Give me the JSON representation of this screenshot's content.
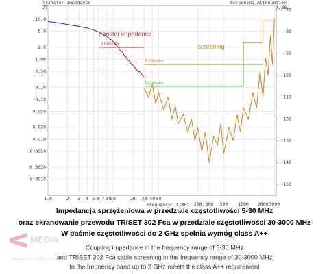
{
  "chart_data": {
    "type": "line",
    "header_left": "Transfer Impedance",
    "unit_left": "ZT/(mOhm/m)",
    "header_right": "Screening Attenuation",
    "unit_right": "as(150)/dB",
    "x_label": "Frequency: f/MHz",
    "xscale": "log",
    "yscale": "log",
    "grid": true,
    "xlim": [
      1,
      3200
    ],
    "xticks": [
      {
        "value": 1,
        "label": "1.0"
      },
      2,
      3,
      4,
      5,
      6,
      7,
      8,
      9,
      10,
      20,
      30,
      40,
      50,
      200,
      300,
      500,
      1000,
      2000,
      3000
    ],
    "ylim": [
      0.0004,
      22
    ],
    "yticks": [
      {
        "value": 10,
        "label": "10.0"
      },
      {
        "value": 5,
        "label": "5.0"
      },
      {
        "value": 2,
        "label": "2.0"
      },
      {
        "value": 1,
        "label": "1.00"
      },
      {
        "value": 0.5,
        "label": "0.50"
      },
      {
        "value": 0.2,
        "label": "0.20"
      },
      {
        "value": 0.1,
        "label": "0.10"
      },
      {
        "value": 0.05,
        "label": "0.050"
      },
      {
        "value": 0.02,
        "label": "0.020"
      },
      {
        "value": 0.01,
        "label": "0.010"
      },
      {
        "value": 0.005,
        "label": "0.0050"
      },
      {
        "value": 0.002,
        "label": "0.0020"
      },
      {
        "value": 0.001,
        "label": "0.0010"
      }
    ],
    "y2lim": [
      -155,
      -68
    ],
    "y2ticks": [
      -70,
      -80,
      -90,
      -100,
      -110,
      -120,
      -130,
      -140,
      -150
    ],
    "annotations": [
      {
        "text": "transfer impedance",
        "x": 6,
        "y": 4.2,
        "color": "#c0392b"
      },
      {
        "text": "screening",
        "x": 200,
        "y2": -87,
        "color": "#d08a30"
      },
      {
        "text": "2 Class A+",
        "x": 6.5,
        "y": 2.4,
        "color": "#c0302a"
      },
      {
        "text": "6 Class A+",
        "x": 31,
        "y2": -93.5,
        "color": "#c07a20"
      },
      {
        "text": "5 Class A+",
        "x": 31,
        "y2": -103.5,
        "color": "#30b030"
      }
    ],
    "series": [
      {
        "color": "#3040a0",
        "x": [
          1,
          1.5,
          2,
          3,
          4,
          5,
          6,
          7,
          8,
          9,
          10
        ],
        "values": [
          8.8,
          8.0,
          7.4,
          6.6,
          6.0,
          5.4,
          4.8,
          4.2,
          3.7,
          3.2,
          2.8
        ]
      },
      {
        "color": "#b0203a",
        "x": [
          10,
          11,
          12,
          13,
          14,
          15,
          16,
          17,
          18,
          19,
          20,
          22,
          24,
          26,
          28,
          30
        ],
        "values": [
          2.8,
          2.3,
          2.0,
          1.6,
          1.5,
          1.2,
          1.1,
          0.95,
          0.9,
          0.75,
          0.72,
          0.6,
          0.5,
          0.48,
          0.4,
          0.35
        ]
      },
      {
        "color": "#c0302a",
        "x": [
          6,
          30
        ],
        "values": [
          2,
          2
        ]
      },
      {
        "color": "#d08a30",
        "axis": "y2",
        "x": [
          30,
          35,
          40,
          45,
          50,
          60,
          70,
          80,
          90,
          100,
          120,
          140,
          160,
          180,
          200,
          230,
          260,
          300,
          350,
          400,
          450,
          500,
          600,
          700,
          800,
          900,
          1000,
          1200,
          1400,
          1600,
          1800,
          2000,
          2200,
          2400,
          2600,
          2800,
          3000
        ],
        "values": [
          -106,
          -110,
          -104,
          -113,
          -108,
          -116,
          -110,
          -120,
          -114,
          -122,
          -118,
          -126,
          -120,
          -130,
          -124,
          -135,
          -126,
          -140,
          -128,
          -132,
          -122,
          -136,
          -124,
          -130,
          -118,
          -126,
          -115,
          -120,
          -108,
          -115,
          -98,
          -110,
          -92,
          -100,
          -82,
          -95,
          -74
        ]
      },
      {
        "color": "#c07a20",
        "axis": "y2",
        "x": [
          30,
          1000,
          1000,
          2000,
          2000,
          3000
        ],
        "values": [
          -95,
          -95,
          -85,
          -85,
          -75,
          -75
        ]
      },
      {
        "color": "#40c040",
        "axis": "y2",
        "x": [
          30,
          1000,
          1000,
          2000
        ],
        "values": [
          -105,
          -105,
          -95,
          -95
        ]
      }
    ]
  },
  "captions": {
    "polish": [
      "Impedancja sprzężeniowa w przedziale częstotliwości 5-30 MHz",
      "oraz ekranowanie przewodu TRISET 302 Fca w przedziale częstotliwości 30-3000 MHz",
      "W paśmie częstotliwości do 2 GHz spełnia wymóg class A++"
    ],
    "english": [
      "Coupling impedance in the frequency range of 5-30 MHz",
      "and TRISET 302 Fca cable screening in the frequency range of 30-3000 MHz",
      "In the frequency band up to 2 GHz meets the class A++ requirement"
    ],
    "watermark": [
      "MEDIA",
      "www.e-media.com.pl"
    ]
  }
}
